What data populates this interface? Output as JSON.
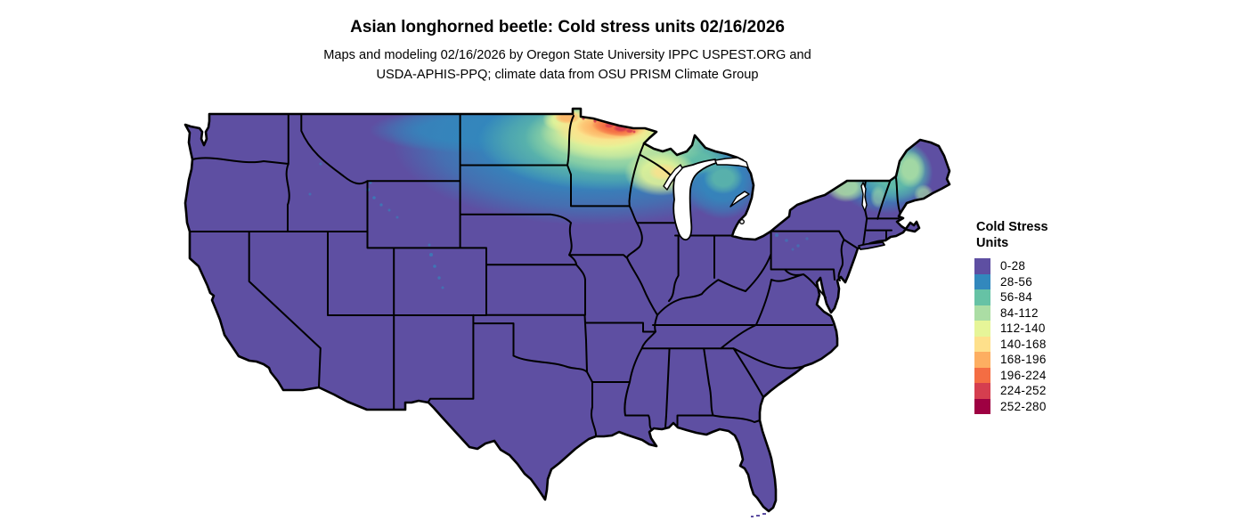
{
  "header": {
    "title": "Asian longhorned beetle: Cold stress units 02/16/2026",
    "subtitle_line1": "Maps and modeling 02/16/2026 by Oregon State University IPPC USPEST.ORG and",
    "subtitle_line2": "USDA-APHIS-PPQ; climate data from OSU PRISM Climate Group"
  },
  "legend": {
    "title_line1": "Cold Stress",
    "title_line2": "Units",
    "items": [
      {
        "label": "0-28",
        "color": "#5e4fa2"
      },
      {
        "label": "28-56",
        "color": "#3288bd"
      },
      {
        "label": "56-84",
        "color": "#66c2a5"
      },
      {
        "label": "84-112",
        "color": "#abdda4"
      },
      {
        "label": "112-140",
        "color": "#e6f598"
      },
      {
        "label": "140-168",
        "color": "#fee08b"
      },
      {
        "label": "168-196",
        "color": "#fdae61"
      },
      {
        "label": "196-224",
        "color": "#f46d43"
      },
      {
        "label": "224-252",
        "color": "#d53e4f"
      },
      {
        "label": "252-280",
        "color": "#9e0142"
      }
    ]
  },
  "map": {
    "outline_color": "#000000",
    "water_color": "#ffffff",
    "background_color": "#ffffff"
  }
}
